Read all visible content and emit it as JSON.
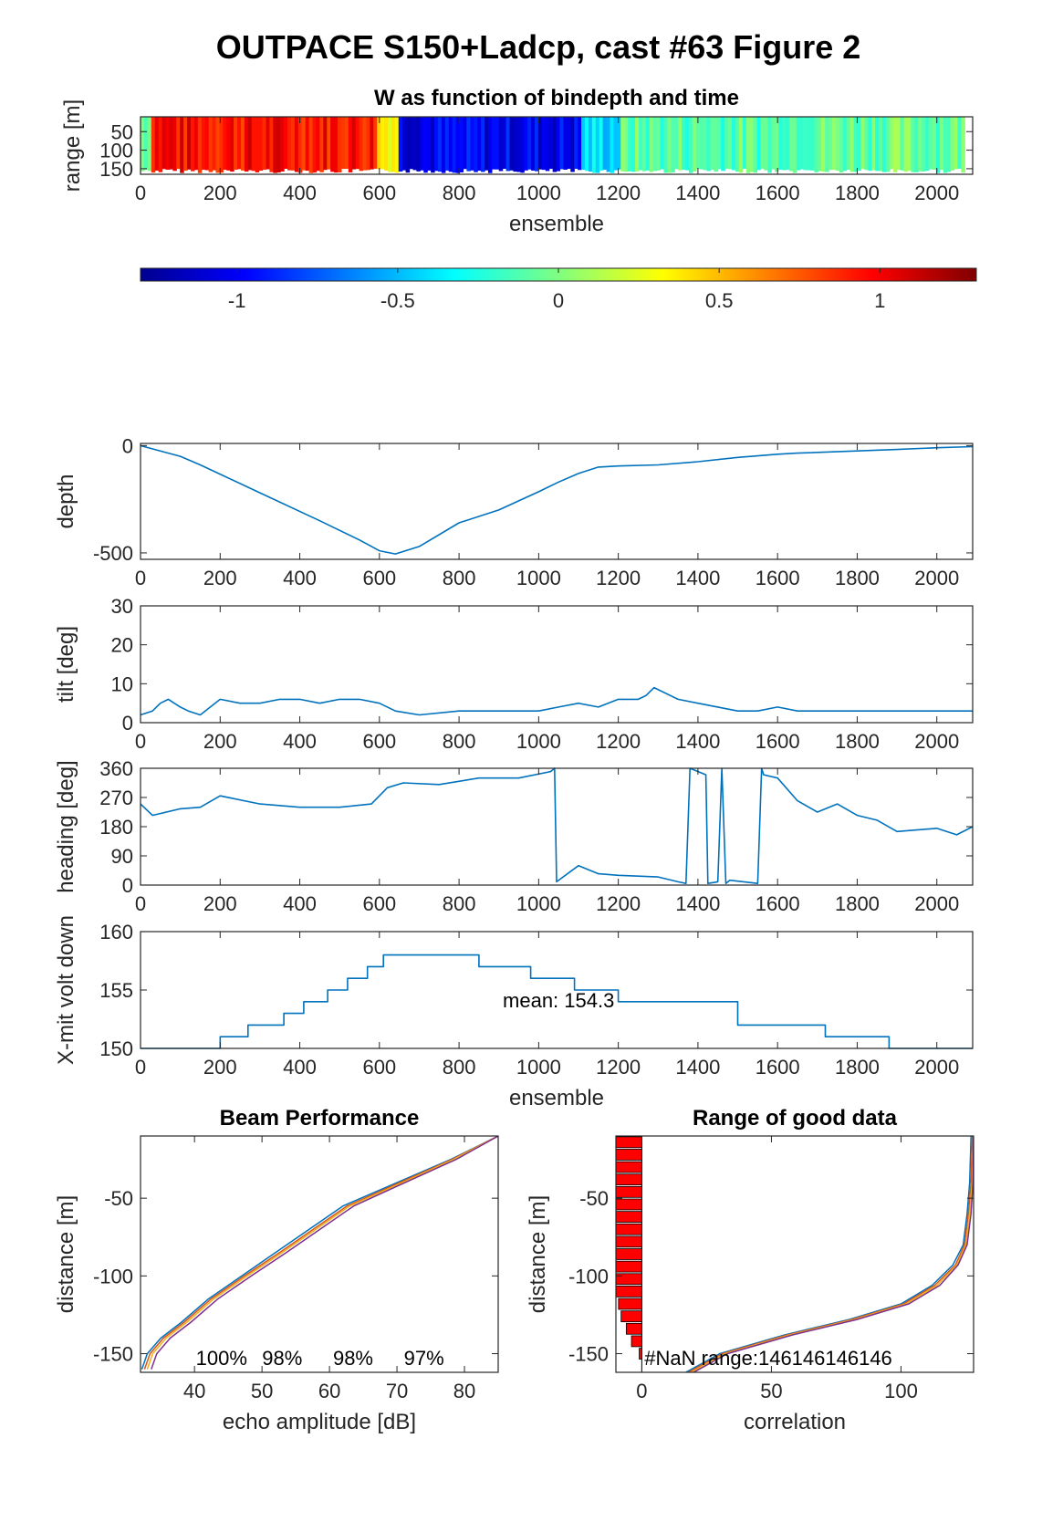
{
  "figure": {
    "title": "OUTPACE S150+Ladcp, cast #63 Figure 2"
  },
  "colors": {
    "line": "#0072BD",
    "beam_lines": [
      "#0072BD",
      "#D95319",
      "#EDB120",
      "#7E2F8E"
    ],
    "nan_bars": "#FF0000"
  },
  "chart_data": [
    {
      "id": "w-panel",
      "type": "heatmap",
      "title": "W as function of bindepth and time",
      "xlabel": "ensemble",
      "ylabel": "range [m]",
      "xlim": [
        0,
        2090
      ],
      "ylim": [
        10,
        165
      ],
      "y_reversed": true,
      "xticks": [
        "0",
        "200",
        "400",
        "600",
        "800",
        "1000",
        "1200",
        "1400",
        "1600",
        "1800",
        "2000"
      ],
      "yticks": [
        "50",
        "100",
        "150"
      ],
      "colorbar": {
        "range": [
          -1.3,
          1.3
        ],
        "ticks": [
          "-1",
          "-0.5",
          "0",
          "0.5",
          "1"
        ]
      },
      "w_segments": [
        {
          "x": [
            0,
            20
          ],
          "w": 0.0
        },
        {
          "x": [
            20,
            90
          ],
          "w": 1.0
        },
        {
          "x": [
            90,
            590
          ],
          "w": 0.95
        },
        {
          "x": [
            590,
            640
          ],
          "w": 0.4
        },
        {
          "x": [
            640,
            1100
          ],
          "w": -1.0
        },
        {
          "x": [
            1100,
            1200
          ],
          "w": -0.4
        },
        {
          "x": [
            1200,
            1600
          ],
          "w": -0.1
        },
        {
          "x": [
            1600,
            2070
          ],
          "w": -0.05
        }
      ]
    },
    {
      "id": "depth-panel",
      "type": "line",
      "ylabel": "depth",
      "xlim": [
        0,
        2090
      ],
      "ylim": [
        -530,
        10
      ],
      "xticks": [
        "0",
        "200",
        "400",
        "600",
        "800",
        "1000",
        "1200",
        "1400",
        "1600",
        "1800",
        "2000"
      ],
      "yticks": [
        "0",
        "-500"
      ],
      "x": [
        0,
        40,
        100,
        150,
        300,
        450,
        550,
        600,
        640,
        700,
        800,
        900,
        1000,
        1050,
        1100,
        1150,
        1200,
        1300,
        1400,
        1500,
        1600,
        1650,
        1800,
        1900,
        2000,
        2090
      ],
      "y": [
        0,
        -20,
        -50,
        -90,
        -220,
        -350,
        -440,
        -490,
        -505,
        -470,
        -360,
        -300,
        -215,
        -170,
        -130,
        -100,
        -95,
        -90,
        -75,
        -55,
        -40,
        -35,
        -25,
        -18,
        -10,
        -5
      ]
    },
    {
      "id": "tilt-panel",
      "type": "line",
      "ylabel": "tilt [deg]",
      "xlim": [
        0,
        2090
      ],
      "ylim": [
        0,
        30
      ],
      "xticks": [
        "0",
        "200",
        "400",
        "600",
        "800",
        "1000",
        "1200",
        "1400",
        "1600",
        "1800",
        "2000"
      ],
      "yticks": [
        "0",
        "10",
        "20",
        "30"
      ],
      "x": [
        0,
        30,
        50,
        70,
        100,
        120,
        150,
        200,
        250,
        300,
        350,
        400,
        450,
        500,
        550,
        600,
        640,
        700,
        800,
        900,
        1000,
        1050,
        1100,
        1150,
        1200,
        1250,
        1270,
        1290,
        1350,
        1400,
        1500,
        1550,
        1600,
        1650,
        1700,
        1800,
        1900,
        2000,
        2090
      ],
      "y": [
        2,
        3,
        5,
        6,
        4,
        3,
        2,
        6,
        5,
        5,
        6,
        6,
        5,
        6,
        6,
        5,
        3,
        2,
        3,
        3,
        3,
        4,
        5,
        4,
        6,
        6,
        7,
        9,
        6,
        5,
        3,
        3,
        4,
        3,
        3,
        3,
        3,
        3,
        3
      ]
    },
    {
      "id": "heading-panel",
      "type": "line",
      "ylabel": "heading [deg]",
      "xlim": [
        0,
        2090
      ],
      "ylim": [
        0,
        360
      ],
      "xticks": [
        "0",
        "200",
        "400",
        "600",
        "800",
        "1000",
        "1200",
        "1400",
        "1600",
        "1800",
        "2000"
      ],
      "yticks": [
        "0",
        "90",
        "180",
        "270",
        "360"
      ],
      "x": [
        0,
        30,
        100,
        150,
        200,
        300,
        400,
        500,
        580,
        620,
        660,
        750,
        850,
        950,
        1030,
        1040,
        1045,
        1100,
        1150,
        1200,
        1300,
        1350,
        1370,
        1380,
        1420,
        1425,
        1450,
        1460,
        1470,
        1480,
        1550,
        1560,
        1565,
        1600,
        1650,
        1700,
        1750,
        1800,
        1850,
        1900,
        2000,
        2050,
        2090
      ],
      "y": [
        250,
        215,
        235,
        240,
        275,
        250,
        240,
        240,
        250,
        300,
        315,
        310,
        330,
        330,
        350,
        360,
        10,
        60,
        35,
        30,
        25,
        10,
        5,
        360,
        340,
        5,
        10,
        360,
        5,
        15,
        5,
        360,
        340,
        330,
        260,
        225,
        250,
        215,
        200,
        165,
        175,
        155,
        180
      ]
    },
    {
      "id": "volt-panel",
      "type": "line",
      "ylabel": "X-mit volt down",
      "xlabel": "ensemble",
      "xlim": [
        0,
        2090
      ],
      "ylim": [
        150,
        160
      ],
      "xticks": [
        "0",
        "200",
        "400",
        "600",
        "800",
        "1000",
        "1200",
        "1400",
        "1600",
        "1800",
        "2000"
      ],
      "yticks": [
        "150",
        "155",
        "160"
      ],
      "annotation": "mean: 154.3",
      "x": [
        0,
        200,
        200,
        270,
        270,
        360,
        360,
        410,
        410,
        470,
        470,
        520,
        520,
        570,
        570,
        610,
        610,
        850,
        850,
        980,
        980,
        1090,
        1090,
        1200,
        1200,
        1500,
        1500,
        1720,
        1720,
        1880,
        1880,
        2090
      ],
      "y": [
        150,
        150,
        151,
        151,
        152,
        152,
        153,
        153,
        154,
        154,
        155,
        155,
        156,
        156,
        157,
        157,
        158,
        158,
        157,
        157,
        156,
        156,
        155,
        155,
        154,
        154,
        152,
        152,
        151,
        151,
        150,
        150
      ]
    },
    {
      "id": "beam-panel",
      "type": "line",
      "title": "Beam Performance",
      "xlabel": "echo amplitude [dB]",
      "ylabel": "distance [m]",
      "xlim": [
        32,
        85
      ],
      "ylim": [
        -162,
        -10
      ],
      "xticks": [
        "40",
        "50",
        "60",
        "70",
        "80"
      ],
      "yticks": [
        "-50",
        "-100",
        "-150"
      ],
      "annotations": [
        "100%",
        "98%",
        "98%",
        "97%"
      ],
      "series": [
        {
          "x": [
            32.2,
            33.0,
            35.0,
            38.0,
            42.0,
            47.0,
            52.0,
            57.0,
            62.0,
            70.0,
            78.0,
            85.0
          ],
          "y": [
            -160,
            -150,
            -140,
            -130,
            -115,
            -100,
            -85,
            -70,
            -55,
            -40,
            -25,
            -10
          ]
        },
        {
          "x": [
            32.6,
            33.4,
            35.4,
            38.4,
            42.4,
            47.4,
            52.6,
            57.6,
            62.6,
            70.4,
            78.2,
            85.0
          ],
          "y": [
            -160,
            -150,
            -140,
            -130,
            -115,
            -100,
            -85,
            -70,
            -55,
            -40,
            -25,
            -10
          ]
        },
        {
          "x": [
            33.0,
            33.8,
            35.8,
            38.8,
            42.8,
            47.8,
            53.0,
            58.0,
            63.0,
            70.8,
            78.4,
            85.0
          ],
          "y": [
            -160,
            -150,
            -140,
            -130,
            -115,
            -100,
            -85,
            -70,
            -55,
            -40,
            -25,
            -10
          ]
        },
        {
          "x": [
            33.6,
            34.4,
            36.4,
            39.4,
            43.4,
            48.4,
            53.6,
            58.6,
            63.6,
            71.2,
            78.8,
            85.0
          ],
          "y": [
            -160,
            -150,
            -140,
            -130,
            -115,
            -100,
            -85,
            -70,
            -55,
            -40,
            -25,
            -10
          ]
        }
      ]
    },
    {
      "id": "range-panel",
      "type": "line",
      "title": "Range of good data",
      "xlabel": "correlation",
      "ylabel": "distance [m]",
      "xlim": [
        -10,
        128
      ],
      "ylim": [
        -162,
        -10
      ],
      "xticks": [
        "0",
        "50",
        "100"
      ],
      "yticks": [
        "-50",
        "-100",
        "-150"
      ],
      "annotation": "#NaN range:146146146146",
      "nan_bars": {
        "y": [
          -14,
          -22,
          -30,
          -38,
          -46,
          -54,
          -62,
          -70,
          -78,
          -86,
          -94,
          -102,
          -110,
          -118,
          -126,
          -134,
          -142,
          -150
        ],
        "length": [
          -10,
          -10,
          -10,
          -10,
          -10,
          -10,
          -10,
          -10,
          -10,
          -10,
          -10,
          -10,
          -10,
          -9,
          -8,
          -6,
          -4,
          -1
        ]
      },
      "series": [
        {
          "x": [
            17,
            30,
            55,
            80,
            100,
            112,
            120,
            124,
            125.5,
            126.5,
            127
          ],
          "y": [
            -162,
            -150,
            -138,
            -128,
            -118,
            -106,
            -93,
            -80,
            -60,
            -40,
            -10
          ]
        },
        {
          "x": [
            18,
            31,
            56,
            81,
            101,
            113,
            121,
            124.5,
            126,
            127,
            127.5
          ],
          "y": [
            -162,
            -150,
            -138,
            -128,
            -118,
            -106,
            -93,
            -80,
            -60,
            -40,
            -10
          ]
        },
        {
          "x": [
            19,
            32,
            57,
            82,
            102,
            114,
            121.5,
            125,
            126.5,
            127.5,
            128
          ],
          "y": [
            -162,
            -150,
            -138,
            -128,
            -118,
            -106,
            -93,
            -80,
            -60,
            -40,
            -10
          ]
        },
        {
          "x": [
            20,
            33,
            58,
            83,
            103,
            115,
            122,
            125.5,
            127,
            127.8,
            128
          ],
          "y": [
            -162,
            -150,
            -138,
            -128,
            -118,
            -106,
            -93,
            -80,
            -60,
            -40,
            -10
          ]
        }
      ]
    }
  ]
}
